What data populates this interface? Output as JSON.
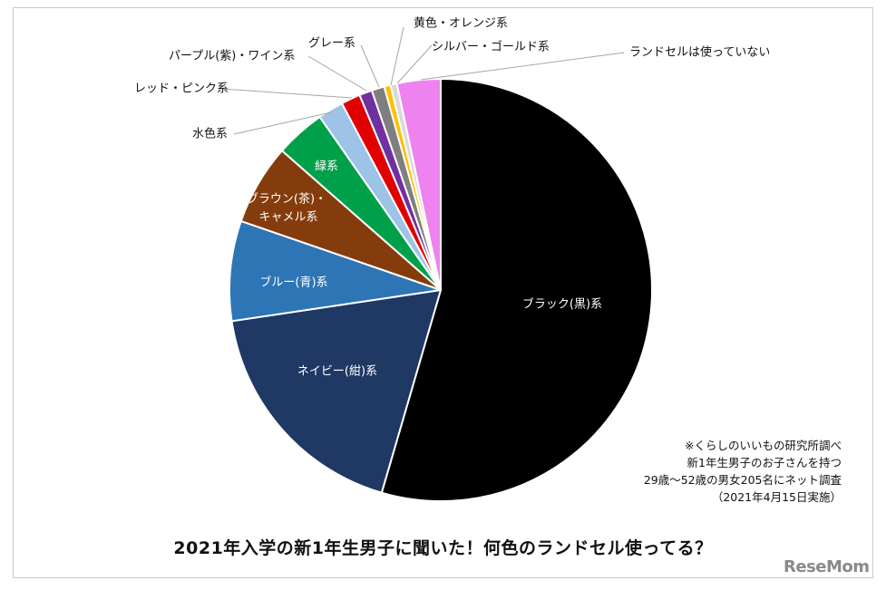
{
  "chart_data": {
    "type": "pie",
    "title": "2021年入学の新1年生男子に聞いた！何色のランドセル使ってる？",
    "slices": [
      {
        "label": "ブラック(黒)系",
        "value": 55.6,
        "color": "#000000",
        "label_color": "#ffffff"
      },
      {
        "label": "ネイビー(紺)系",
        "value": 18.5,
        "color": "#1f3864",
        "label_color": "#ffffff"
      },
      {
        "label": "ブルー(青)系",
        "value": 7.8,
        "color": "#2e75b6",
        "label_color": "#ffffff"
      },
      {
        "label": "ブラウン(茶)・キャメル系",
        "value": 6.3,
        "color": "#843c0c",
        "label_color": "#ffffff"
      },
      {
        "label": "緑系",
        "value": 3.9,
        "color": "#00a04b",
        "label_color": "#ffffff"
      },
      {
        "label": "水色系",
        "value": 2.0,
        "color": "#9dc3e6",
        "label_color": "#111111"
      },
      {
        "label": "レッド・ピンク系",
        "value": 1.5,
        "color": "#e00000",
        "label_color": "#111111"
      },
      {
        "label": "パープル(紫)・ワイン系",
        "value": 1.0,
        "color": "#7030a0",
        "label_color": "#111111"
      },
      {
        "label": "グレー系",
        "value": 1.0,
        "color": "#7f7f7f",
        "label_color": "#111111"
      },
      {
        "label": "黄色・オレンジ系",
        "value": 0.5,
        "color": "#ffc000",
        "label_color": "#111111"
      },
      {
        "label": "シルバー・ゴールド系",
        "value": 0.5,
        "color": "#d9d9d9",
        "label_color": "#111111"
      },
      {
        "label": "ランドセルは使っていない",
        "value": 3.4,
        "color": "#ee82ee",
        "label_color": "#111111"
      }
    ]
  },
  "note": [
    "※くらしのいいもの研究所調べ",
    "新1年生男子のお子さんを持つ",
    "29歳～52歳の男女205名にネット調査",
    "（2021年4月15日実施）"
  ],
  "watermark": "ReseMom"
}
